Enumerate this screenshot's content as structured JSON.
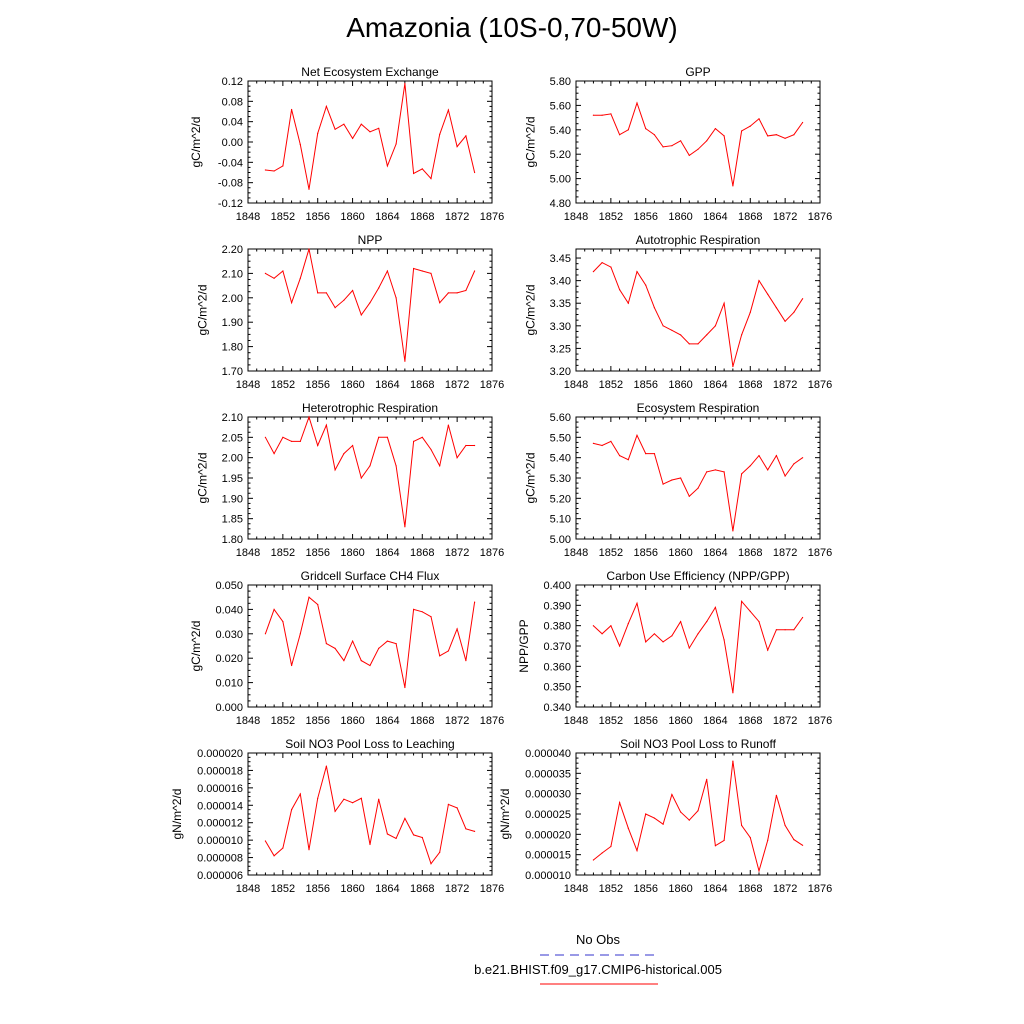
{
  "title": "Amazonia (10S-0,70-50W)",
  "legend": {
    "items": [
      {
        "label": "No Obs",
        "color": "#3333cc",
        "dash": true
      },
      {
        "label": "b.e21.BHIST.f09_g17.CMIP6-historical.005",
        "color": "#ff0000",
        "dash": false
      }
    ]
  },
  "colors": {
    "line": "#ff0000",
    "axis": "#000000"
  },
  "chart_data": [
    {
      "type": "line",
      "title": "Net Ecosystem Exchange",
      "ylabel": "gC/m^2/d",
      "xlim": [
        1848,
        1876
      ],
      "ylim": [
        -0.12,
        0.12
      ],
      "xticks": [
        "1848",
        "1852",
        "1856",
        "1860",
        "1864",
        "1868",
        "1872",
        "1876"
      ],
      "yticks": [
        "-0.12",
        "-0.08",
        "-0.04",
        "0.00",
        "0.04",
        "0.08",
        "0.12"
      ],
      "x": [
        1850,
        1851,
        1852,
        1853,
        1854,
        1855,
        1856,
        1857,
        1858,
        1859,
        1860,
        1861,
        1862,
        1863,
        1864,
        1865,
        1866,
        1867,
        1868,
        1869,
        1870,
        1871,
        1872,
        1873,
        1874
      ],
      "series": [
        {
          "values": [
            -0.055,
            -0.057,
            -0.047,
            0.064,
            -0.005,
            -0.093,
            0.017,
            0.07,
            0.025,
            0.035,
            0.007,
            0.035,
            0.02,
            0.027,
            -0.047,
            -0.004,
            0.115,
            -0.062,
            -0.053,
            -0.072,
            0.015,
            0.063,
            -0.009,
            0.012,
            -0.06
          ]
        }
      ]
    },
    {
      "type": "line",
      "title": "GPP",
      "ylabel": "gC/m^2/d",
      "xlim": [
        1848,
        1876
      ],
      "ylim": [
        4.8,
        5.8
      ],
      "xticks": [
        "1848",
        "1852",
        "1856",
        "1860",
        "1864",
        "1868",
        "1872",
        "1876"
      ],
      "yticks": [
        "4.80",
        "5.00",
        "5.20",
        "5.40",
        "5.60",
        "5.80"
      ],
      "x": [
        1850,
        1851,
        1852,
        1853,
        1854,
        1855,
        1856,
        1857,
        1858,
        1859,
        1860,
        1861,
        1862,
        1863,
        1864,
        1865,
        1866,
        1867,
        1868,
        1869,
        1870,
        1871,
        1872,
        1873,
        1874
      ],
      "series": [
        {
          "values": [
            5.52,
            5.52,
            5.53,
            5.36,
            5.4,
            5.62,
            5.41,
            5.36,
            5.26,
            5.27,
            5.31,
            5.19,
            5.24,
            5.31,
            5.41,
            5.35,
            4.94,
            5.39,
            5.43,
            5.49,
            5.35,
            5.36,
            5.33,
            5.36,
            5.46
          ]
        }
      ]
    },
    {
      "type": "line",
      "title": "NPP",
      "ylabel": "gC/m^2/d",
      "xlim": [
        1848,
        1876
      ],
      "ylim": [
        1.7,
        2.2
      ],
      "xticks": [
        "1848",
        "1852",
        "1856",
        "1860",
        "1864",
        "1868",
        "1872",
        "1876"
      ],
      "yticks": [
        "1.70",
        "1.80",
        "1.90",
        "2.00",
        "2.10",
        "2.20"
      ],
      "x": [
        1850,
        1851,
        1852,
        1853,
        1854,
        1855,
        1856,
        1857,
        1858,
        1859,
        1860,
        1861,
        1862,
        1863,
        1864,
        1865,
        1866,
        1867,
        1868,
        1869,
        1870,
        1871,
        1872,
        1873,
        1874
      ],
      "series": [
        {
          "values": [
            2.1,
            2.08,
            2.11,
            1.98,
            2.08,
            2.2,
            2.02,
            2.02,
            1.96,
            1.99,
            2.03,
            1.93,
            1.98,
            2.04,
            2.11,
            2.0,
            1.74,
            2.12,
            2.11,
            2.1,
            1.98,
            2.02,
            2.02,
            2.03,
            2.11
          ]
        }
      ]
    },
    {
      "type": "line",
      "title": "Autotrophic Respiration",
      "ylabel": "gC/m^2/d",
      "xlim": [
        1848,
        1876
      ],
      "ylim": [
        3.2,
        3.47
      ],
      "xticks": [
        "1848",
        "1852",
        "1856",
        "1860",
        "1864",
        "1868",
        "1872",
        "1876"
      ],
      "yticks": [
        "3.20",
        "3.25",
        "3.30",
        "3.35",
        "3.40",
        "3.45"
      ],
      "x": [
        1850,
        1851,
        1852,
        1853,
        1854,
        1855,
        1856,
        1857,
        1858,
        1859,
        1860,
        1861,
        1862,
        1863,
        1864,
        1865,
        1866,
        1867,
        1868,
        1869,
        1870,
        1871,
        1872,
        1873,
        1874
      ],
      "series": [
        {
          "values": [
            3.42,
            3.44,
            3.43,
            3.38,
            3.35,
            3.42,
            3.39,
            3.34,
            3.3,
            3.29,
            3.28,
            3.26,
            3.26,
            3.28,
            3.3,
            3.35,
            3.21,
            3.28,
            3.33,
            3.4,
            3.37,
            3.34,
            3.31,
            3.33,
            3.36
          ]
        }
      ]
    },
    {
      "type": "line",
      "title": "Heterotrophic Respiration",
      "ylabel": "gC/m^2/d",
      "xlim": [
        1848,
        1876
      ],
      "ylim": [
        1.8,
        2.1
      ],
      "xticks": [
        "1848",
        "1852",
        "1856",
        "1860",
        "1864",
        "1868",
        "1872",
        "1876"
      ],
      "yticks": [
        "1.80",
        "1.85",
        "1.90",
        "1.95",
        "2.00",
        "2.05",
        "2.10"
      ],
      "x": [
        1850,
        1851,
        1852,
        1853,
        1854,
        1855,
        1856,
        1857,
        1858,
        1859,
        1860,
        1861,
        1862,
        1863,
        1864,
        1865,
        1866,
        1867,
        1868,
        1869,
        1870,
        1871,
        1872,
        1873,
        1874
      ],
      "series": [
        {
          "values": [
            2.05,
            2.01,
            2.05,
            2.04,
            2.04,
            2.1,
            2.03,
            2.08,
            1.97,
            2.01,
            2.03,
            1.95,
            1.98,
            2.05,
            2.05,
            1.98,
            1.83,
            2.04,
            2.05,
            2.02,
            1.98,
            2.08,
            2.0,
            2.03,
            2.03
          ]
        }
      ]
    },
    {
      "type": "line",
      "title": "Ecosystem Respiration",
      "ylabel": "gC/m^2/d",
      "xlim": [
        1848,
        1876
      ],
      "ylim": [
        5.0,
        5.6
      ],
      "xticks": [
        "1848",
        "1852",
        "1856",
        "1860",
        "1864",
        "1868",
        "1872",
        "1876"
      ],
      "yticks": [
        "5.00",
        "5.10",
        "5.20",
        "5.30",
        "5.40",
        "5.50",
        "5.60"
      ],
      "x": [
        1850,
        1851,
        1852,
        1853,
        1854,
        1855,
        1856,
        1857,
        1858,
        1859,
        1860,
        1861,
        1862,
        1863,
        1864,
        1865,
        1866,
        1867,
        1868,
        1869,
        1870,
        1871,
        1872,
        1873,
        1874
      ],
      "series": [
        {
          "values": [
            5.47,
            5.46,
            5.48,
            5.41,
            5.39,
            5.51,
            5.42,
            5.42,
            5.27,
            5.29,
            5.3,
            5.21,
            5.25,
            5.33,
            5.34,
            5.33,
            5.04,
            5.32,
            5.36,
            5.41,
            5.34,
            5.41,
            5.31,
            5.37,
            5.4
          ]
        }
      ]
    },
    {
      "type": "line",
      "title": "Gridcell Surface CH4 Flux",
      "ylabel": "gC/m^2/d",
      "xlim": [
        1848,
        1876
      ],
      "ylim": [
        0.0,
        0.05
      ],
      "xticks": [
        "1848",
        "1852",
        "1856",
        "1860",
        "1864",
        "1868",
        "1872",
        "1876"
      ],
      "yticks": [
        "0.000",
        "0.010",
        "0.020",
        "0.030",
        "0.040",
        "0.050"
      ],
      "x": [
        1850,
        1851,
        1852,
        1853,
        1854,
        1855,
        1856,
        1857,
        1858,
        1859,
        1860,
        1861,
        1862,
        1863,
        1864,
        1865,
        1866,
        1867,
        1868,
        1869,
        1870,
        1871,
        1872,
        1873,
        1874
      ],
      "series": [
        {
          "values": [
            0.03,
            0.04,
            0.035,
            0.017,
            0.03,
            0.045,
            0.042,
            0.026,
            0.024,
            0.019,
            0.027,
            0.019,
            0.017,
            0.024,
            0.027,
            0.026,
            0.008,
            0.04,
            0.039,
            0.037,
            0.021,
            0.023,
            0.032,
            0.019,
            0.043
          ]
        }
      ]
    },
    {
      "type": "line",
      "title": "Carbon Use Efficiency (NPP/GPP)",
      "ylabel": "NPP/GPP",
      "xlim": [
        1848,
        1876
      ],
      "ylim": [
        0.34,
        0.4
      ],
      "xticks": [
        "1848",
        "1852",
        "1856",
        "1860",
        "1864",
        "1868",
        "1872",
        "1876"
      ],
      "yticks": [
        "0.340",
        "0.350",
        "0.360",
        "0.370",
        "0.380",
        "0.390",
        "0.400"
      ],
      "x": [
        1850,
        1851,
        1852,
        1853,
        1854,
        1855,
        1856,
        1857,
        1858,
        1859,
        1860,
        1861,
        1862,
        1863,
        1864,
        1865,
        1866,
        1867,
        1868,
        1869,
        1870,
        1871,
        1872,
        1873,
        1874
      ],
      "series": [
        {
          "values": [
            0.38,
            0.376,
            0.38,
            0.37,
            0.381,
            0.391,
            0.372,
            0.376,
            0.372,
            0.375,
            0.382,
            0.369,
            0.376,
            0.382,
            0.389,
            0.373,
            0.347,
            0.392,
            0.387,
            0.382,
            0.368,
            0.378,
            0.378,
            0.378,
            0.384
          ]
        }
      ]
    },
    {
      "type": "line",
      "title": "Soil NO3 Pool Loss to Leaching",
      "ylabel": "gN/m^2/d",
      "xlim": [
        1848,
        1876
      ],
      "ylim": [
        6e-06,
        2e-05
      ],
      "xticks": [
        "1848",
        "1852",
        "1856",
        "1860",
        "1864",
        "1868",
        "1872",
        "1876"
      ],
      "yticks": [
        "0.000006",
        "0.000008",
        "0.000010",
        "0.000012",
        "0.000014",
        "0.000016",
        "0.000018",
        "0.000020"
      ],
      "x": [
        1850,
        1851,
        1852,
        1853,
        1854,
        1855,
        1856,
        1857,
        1858,
        1859,
        1860,
        1861,
        1862,
        1863,
        1864,
        1865,
        1866,
        1867,
        1868,
        1869,
        1870,
        1871,
        1872,
        1873,
        1874
      ],
      "series": [
        {
          "values": [
            9.9e-06,
            8.2e-06,
            9.1e-06,
            1.35e-05,
            1.53e-05,
            8.9e-06,
            1.48e-05,
            1.85e-05,
            1.33e-05,
            1.47e-05,
            1.43e-05,
            1.48e-05,
            9.5e-06,
            1.47e-05,
            1.07e-05,
            1.02e-05,
            1.25e-05,
            1.06e-05,
            1.03e-05,
            7.3e-06,
            8.6e-06,
            1.41e-05,
            1.37e-05,
            1.13e-05,
            1.1e-05
          ]
        }
      ]
    },
    {
      "type": "line",
      "title": "Soil NO3 Pool Loss to Runoff",
      "ylabel": "gN/m^2/d",
      "xlim": [
        1848,
        1876
      ],
      "ylim": [
        1e-05,
        4e-05
      ],
      "xticks": [
        "1848",
        "1852",
        "1856",
        "1860",
        "1864",
        "1868",
        "1872",
        "1876"
      ],
      "yticks": [
        "0.000010",
        "0.000015",
        "0.000020",
        "0.000025",
        "0.000030",
        "0.000035",
        "0.000040"
      ],
      "x": [
        1850,
        1851,
        1852,
        1853,
        1854,
        1855,
        1856,
        1857,
        1858,
        1859,
        1860,
        1861,
        1862,
        1863,
        1864,
        1865,
        1866,
        1867,
        1868,
        1869,
        1870,
        1871,
        1872,
        1873,
        1874
      ],
      "series": [
        {
          "values": [
            1.37e-05,
            1.54e-05,
            1.7e-05,
            2.78e-05,
            2.15e-05,
            1.6e-05,
            2.5e-05,
            2.4e-05,
            2.25e-05,
            2.98e-05,
            2.55e-05,
            2.35e-05,
            2.58e-05,
            3.35e-05,
            1.72e-05,
            1.85e-05,
            3.8e-05,
            2.22e-05,
            1.92e-05,
            1.1e-05,
            1.85e-05,
            2.96e-05,
            2.22e-05,
            1.87e-05,
            1.73e-05
          ]
        }
      ]
    }
  ]
}
